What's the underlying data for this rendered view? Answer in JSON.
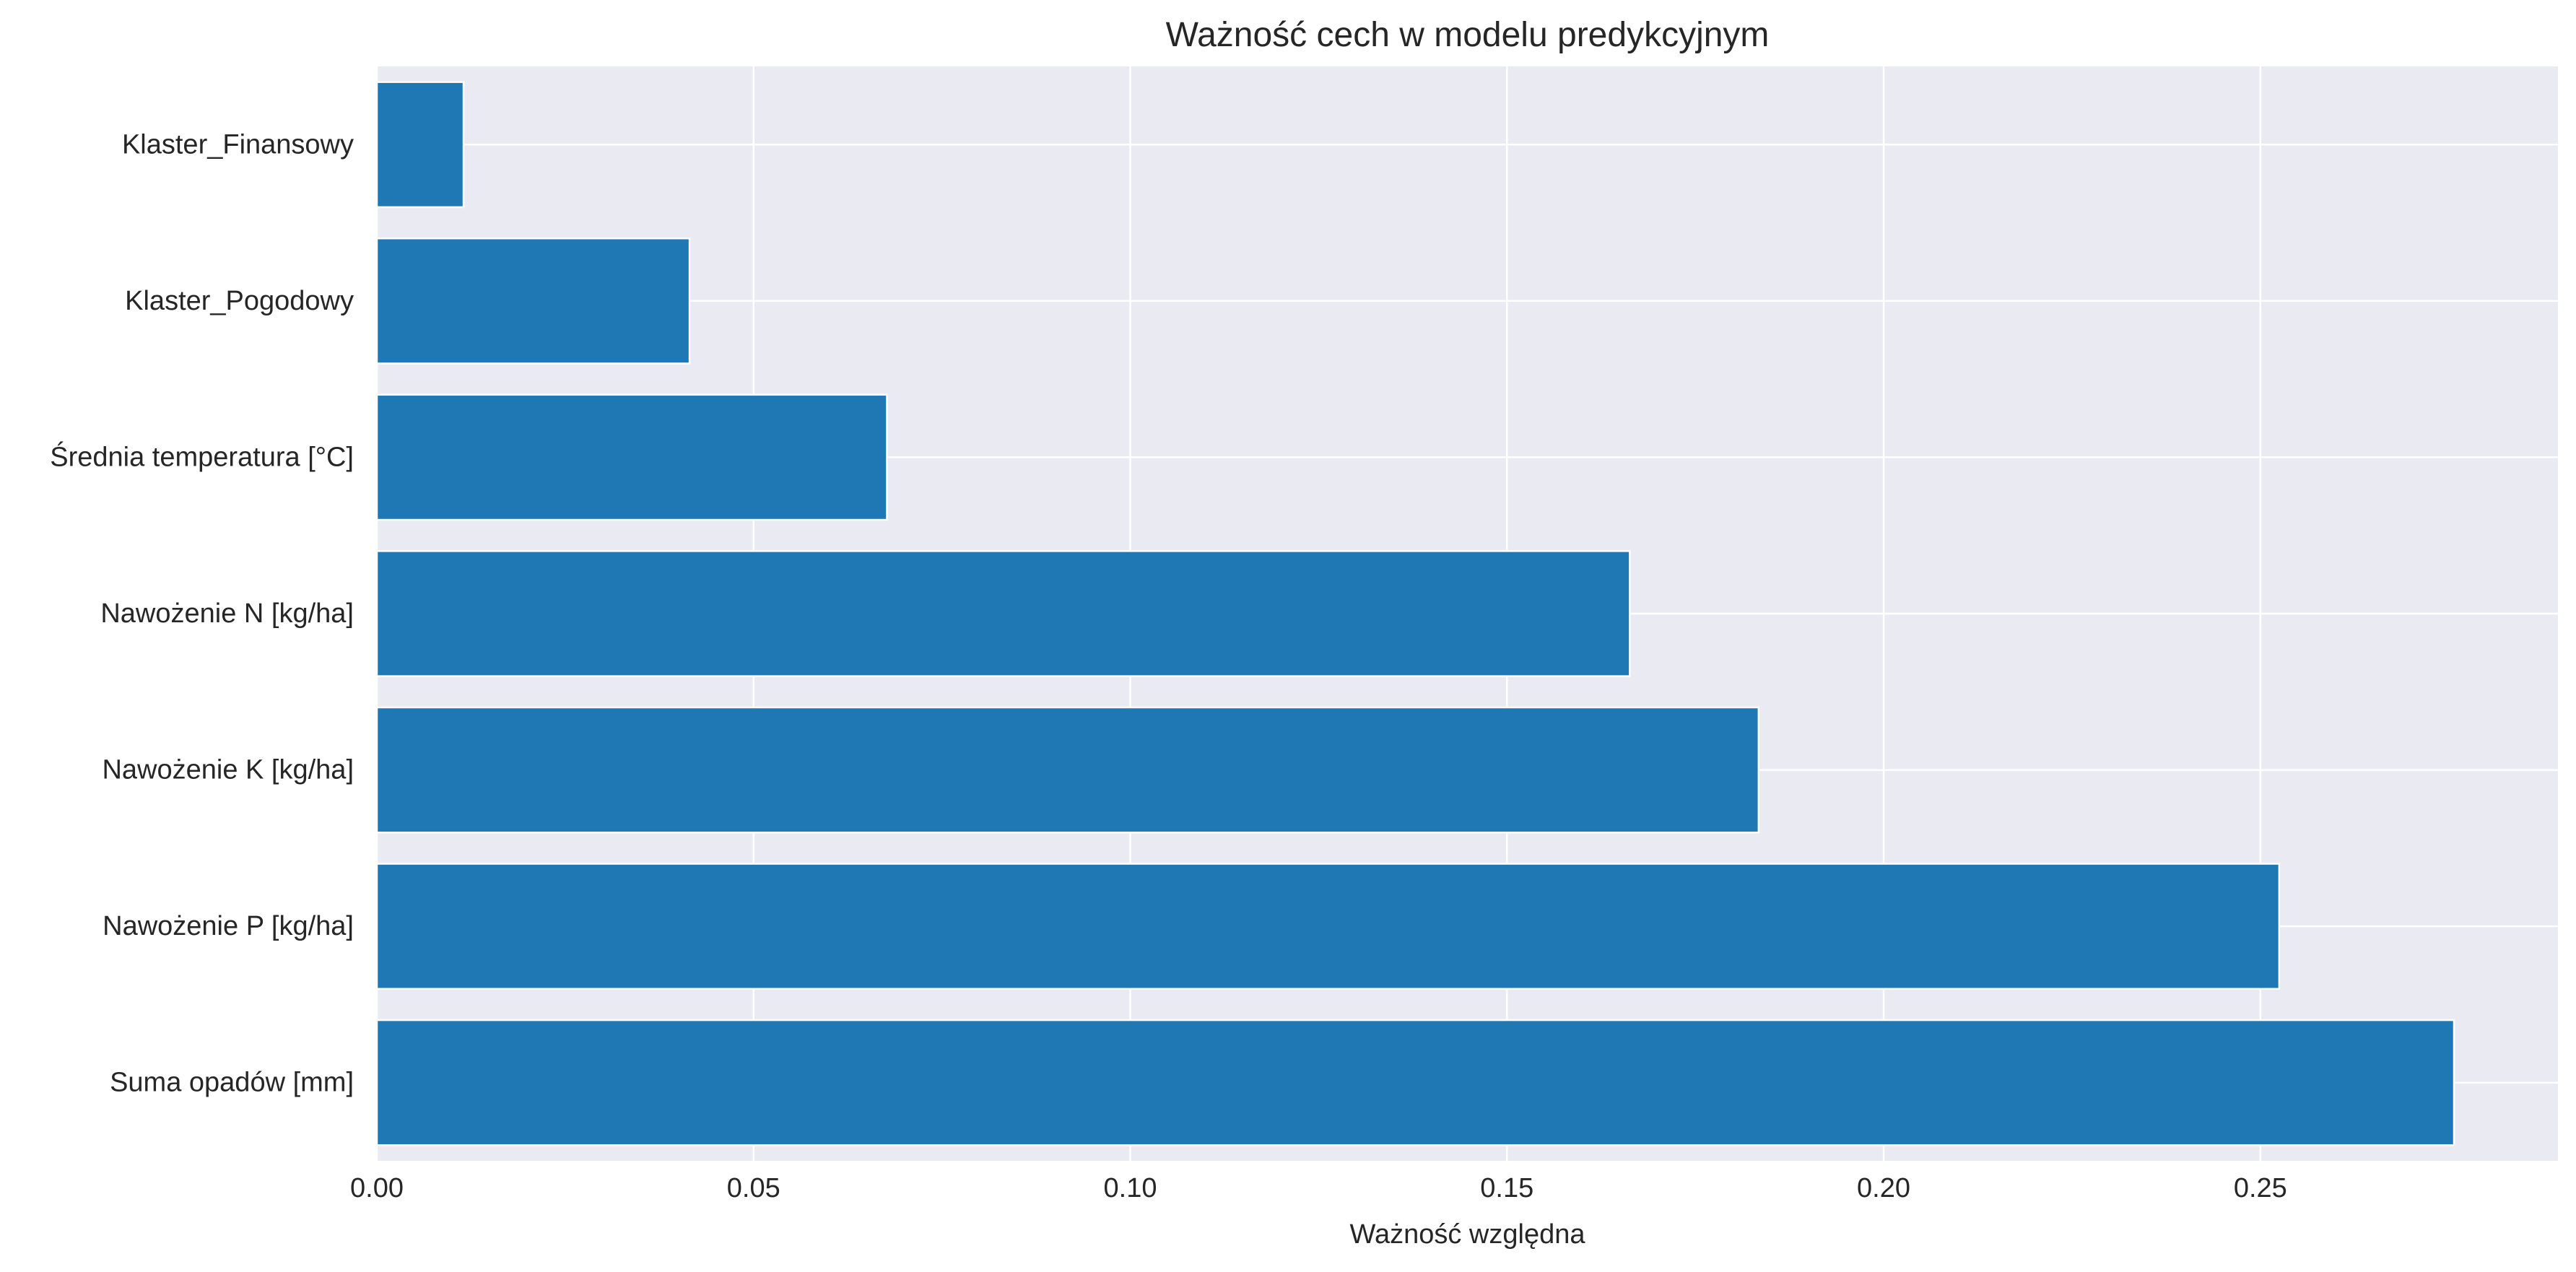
{
  "chart_data": {
    "type": "bar",
    "orientation": "horizontal",
    "title": "Ważność cech w modelu predykcyjnym",
    "xlabel": "Ważność względna",
    "ylabel": "",
    "categories": [
      "Klaster_Finansowy",
      "Klaster_Pogodowy",
      "Średnia temperatura [°C]",
      "Nawożenie N [kg/ha]",
      "Nawożenie K [kg/ha]",
      "Nawożenie P [kg/ha]",
      "Suma opadów [mm]"
    ],
    "values": [
      0.0115,
      0.0415,
      0.0677,
      0.1663,
      0.1834,
      0.2525,
      0.2757
    ],
    "xlim": [
      0,
      0.2895
    ],
    "xticks": [
      0.0,
      0.05,
      0.1,
      0.15,
      0.2,
      0.25
    ],
    "xtick_labels": [
      "0.00",
      "0.05",
      "0.10",
      "0.15",
      "0.20",
      "0.25"
    ],
    "grid": true,
    "legend": "none",
    "colors": {
      "bar": "#1f77b4",
      "plot_background": "#eaeaf2",
      "grid": "#ffffff",
      "text": "#262626"
    }
  }
}
